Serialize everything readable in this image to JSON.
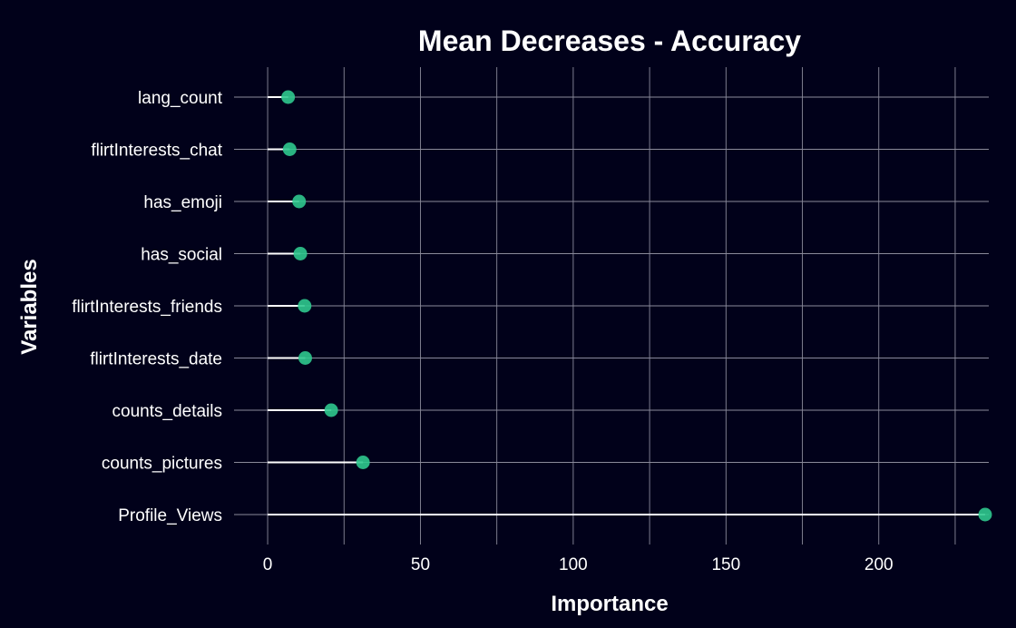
{
  "colors": {
    "background": "#01011a",
    "point": "#2fc88e",
    "segment": "#ffffff",
    "text": "#ffffff",
    "grid": "#8a8a9a"
  },
  "chart_data": {
    "type": "lollipop",
    "title": "Mean Decreases - Accuracy",
    "xlabel": "Importance",
    "ylabel": "Variables",
    "xlim": [
      -11,
      236
    ],
    "x_ticks": [
      0,
      50,
      100,
      150,
      200
    ],
    "x_tick_labels": [
      "0",
      "50",
      "100",
      "150",
      "200"
    ],
    "x_minor_ticks": [
      25,
      75,
      125,
      175,
      225
    ],
    "grid": true,
    "legend": "none",
    "categories": [
      "lang_count",
      "flirtInterests_chat",
      "has_emoji",
      "has_social",
      "flirtInterests_friends",
      "flirtInterests_date",
      "counts_details",
      "counts_pictures",
      "Profile_Views"
    ],
    "values": [
      6.7,
      7.2,
      10.3,
      10.7,
      12.1,
      12.3,
      20.8,
      31.2,
      234.8
    ]
  }
}
